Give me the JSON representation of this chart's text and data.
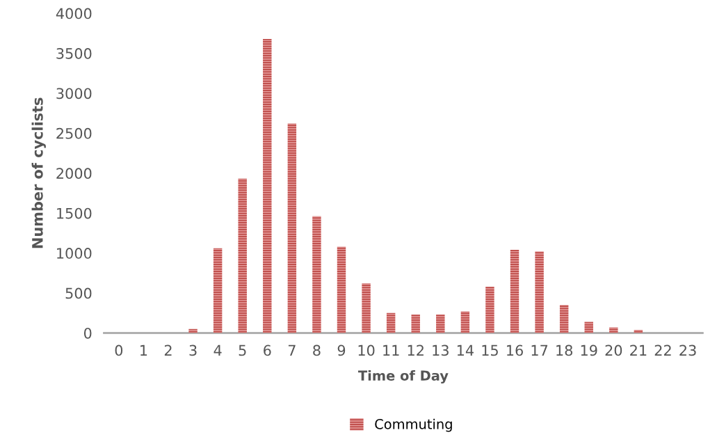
{
  "chart_data": {
    "type": "bar",
    "xlabel": "Time of Day",
    "ylabel": "Number of cyclists",
    "categories": [
      "0",
      "1",
      "2",
      "3",
      "4",
      "5",
      "6",
      "7",
      "8",
      "9",
      "10",
      "11",
      "12",
      "13",
      "14",
      "15",
      "16",
      "17",
      "18",
      "19",
      "20",
      "21",
      "22",
      "23"
    ],
    "series": [
      {
        "name": "Commuting",
        "color": "#c0504d",
        "values": [
          0,
          0,
          0,
          50,
          1060,
          1930,
          3680,
          2620,
          1460,
          1080,
          620,
          250,
          230,
          230,
          270,
          580,
          1040,
          1020,
          350,
          140,
          70,
          40,
          0,
          0
        ]
      }
    ],
    "ylim": [
      0,
      4000
    ],
    "yticks": [
      0,
      500,
      1000,
      1500,
      2000,
      2500,
      3000,
      3500,
      4000
    ],
    "grid": false,
    "legend": "bottom"
  }
}
